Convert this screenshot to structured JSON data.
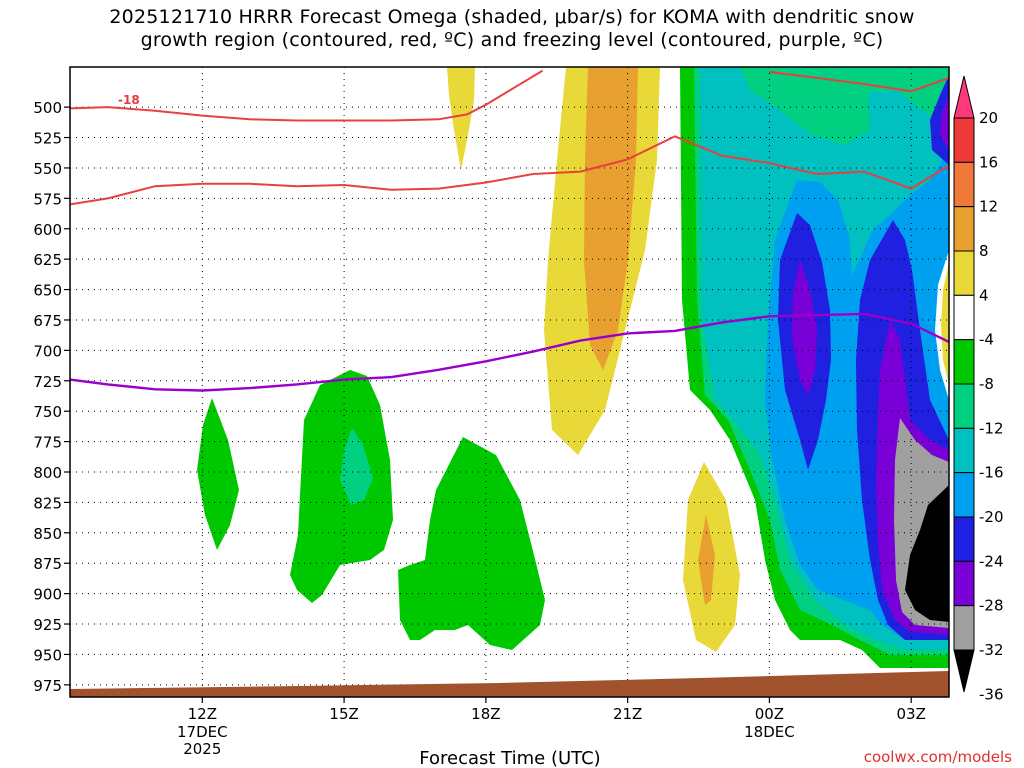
{
  "chart_data": {
    "type": "contour",
    "title": "2025121710 HRRR Forecast Omega (shaded, μbar/s) for KOMA with dendritic snow\ngrowth region (contoured, red, ºC) and freezing level (contoured, purple, ºC)",
    "xlabel": "Forecast Time (UTC)",
    "ylabel": "",
    "y_ticks": [
      500,
      525,
      550,
      575,
      600,
      625,
      650,
      675,
      700,
      725,
      750,
      775,
      800,
      825,
      850,
      875,
      900,
      925,
      950,
      975
    ],
    "ylim": [
      467,
      985
    ],
    "x_range_hours": [
      9.2,
      27.8
    ],
    "x_ticks": [
      {
        "hour": 12,
        "label": "12Z",
        "sub": [
          "17DEC",
          "2025"
        ]
      },
      {
        "hour": 15,
        "label": "15Z",
        "sub": []
      },
      {
        "hour": 18,
        "label": "18Z",
        "sub": []
      },
      {
        "hour": 21,
        "label": "21Z",
        "sub": []
      },
      {
        "hour": 24,
        "label": "00Z",
        "sub": [
          "18DEC"
        ]
      },
      {
        "hour": 27,
        "label": "03Z",
        "sub": []
      }
    ],
    "colorbar": {
      "labels": [
        "20",
        "16",
        "12",
        "8",
        "4",
        "-4",
        "-8",
        "-12",
        "-16",
        "-20",
        "-24",
        "-28",
        "-32",
        "-36"
      ],
      "colors": [
        "#ff3a7a",
        "#f03a3a",
        "#f07838",
        "#e8a030",
        "#e8d838",
        "#ffffff",
        "#00c800",
        "#00d080",
        "#00c0c0",
        "#00a0f0",
        "#2020e0",
        "#7a00d8",
        "#a0a0a0",
        "#000000"
      ]
    },
    "dgz_label": "-18",
    "freezing_level": {
      "hours": [
        9.2,
        10,
        11,
        12,
        13,
        14,
        15,
        16,
        17,
        18,
        19,
        20,
        21,
        22,
        23,
        24,
        25,
        26,
        27,
        27.8
      ],
      "pressure": [
        724,
        728,
        732,
        733,
        731,
        728,
        724,
        722,
        716,
        709,
        701,
        692,
        686,
        684,
        677,
        672,
        671,
        670,
        678,
        693
      ]
    },
    "dgz_upper": {
      "hours": [
        9.2,
        10,
        11,
        12,
        13,
        14,
        15,
        16,
        17,
        17.6,
        18,
        18.6,
        19.2
      ],
      "pressure": [
        501,
        500,
        503,
        507,
        510,
        511,
        511,
        511,
        510,
        506,
        498,
        484,
        470
      ]
    },
    "dgz_lower_a": {
      "hours": [
        9.2,
        10,
        11,
        12,
        13,
        14,
        15,
        16,
        17,
        18,
        19,
        20,
        21,
        22,
        23,
        24,
        25,
        26,
        27,
        27.8
      ],
      "pressure": [
        580,
        575,
        565,
        563,
        563,
        565,
        564,
        568,
        567,
        562,
        555,
        553,
        543,
        524,
        540,
        546,
        555,
        553,
        567,
        548
      ]
    },
    "dgz_upper_b": {
      "hours": [
        24,
        25,
        26,
        27,
        27.8
      ],
      "pressure": [
        471,
        476,
        481,
        487,
        476
      ]
    }
  },
  "footer": {
    "url": "coolwx.com/models"
  },
  "colors": {
    "ground": "#a0522d",
    "dgz": "#e84040",
    "freezing": "#9900cc"
  }
}
